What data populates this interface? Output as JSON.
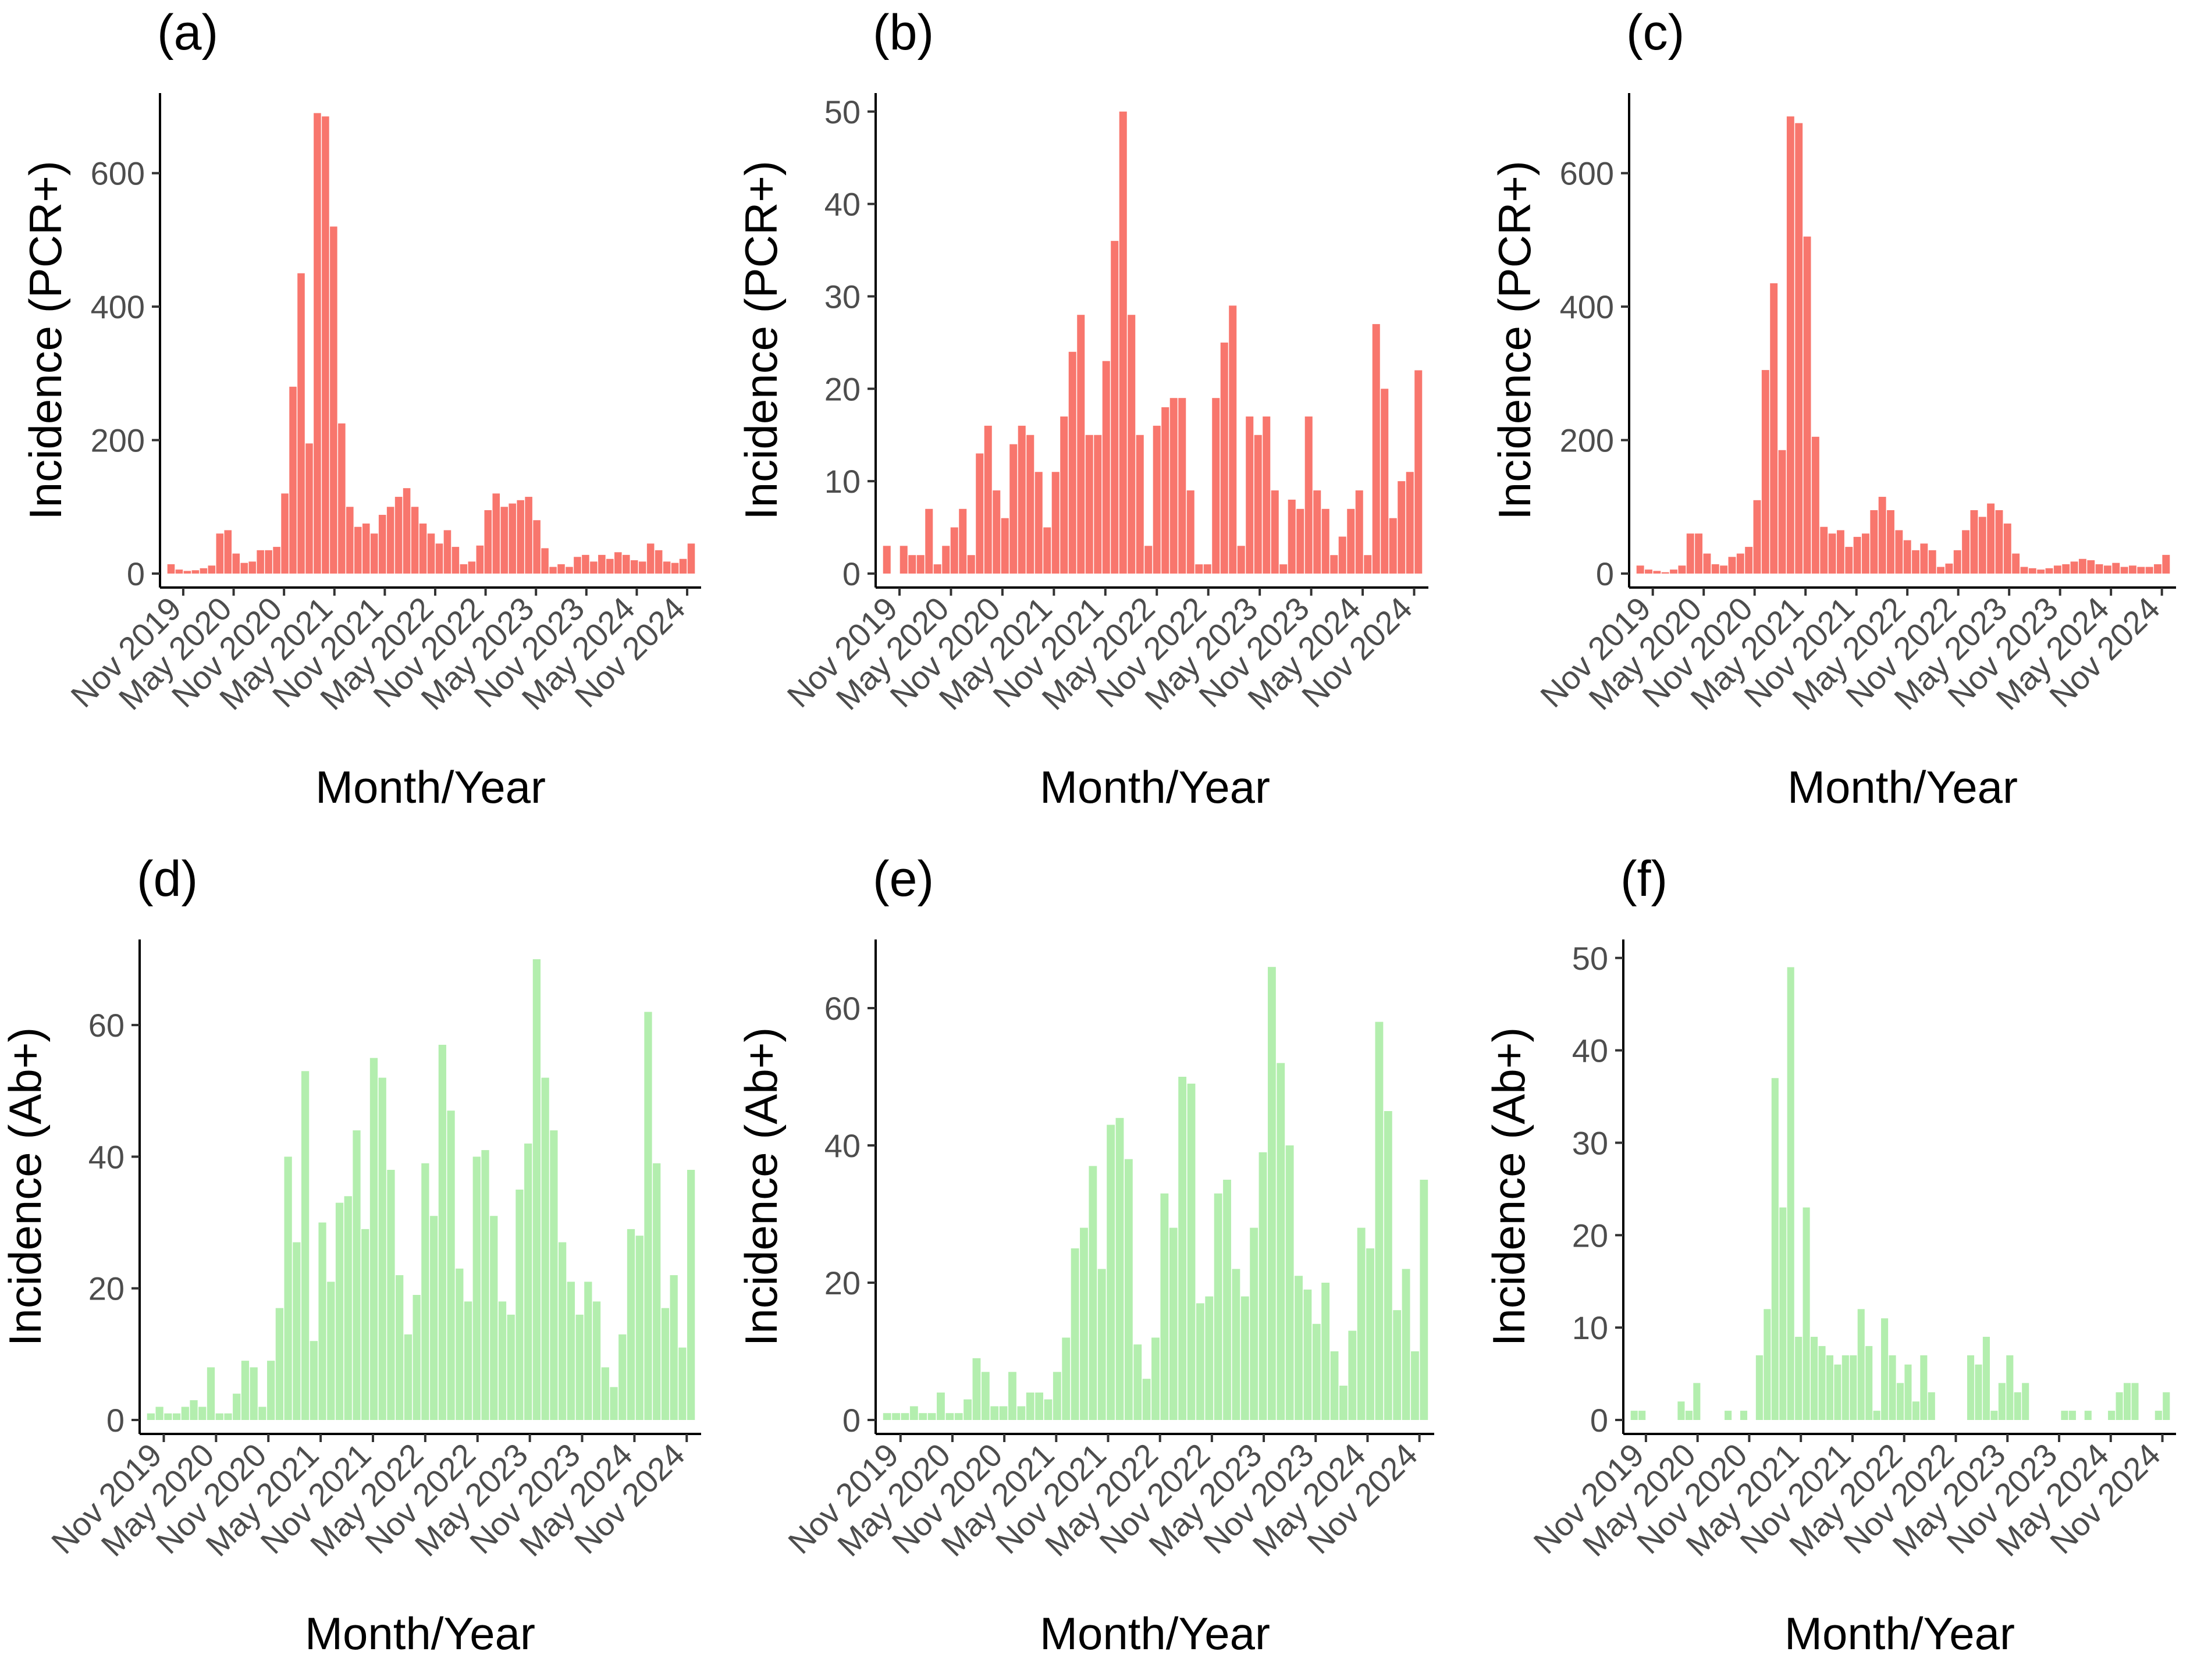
{
  "chart_data": [
    {
      "type": "bar",
      "panel": "(a)",
      "ylabel": "Incidence (PCR+)",
      "xlabel": "Month/Year",
      "color": "#f8766d",
      "ylim": [
        0,
        720
      ],
      "yticks": [
        0,
        200,
        400,
        600
      ],
      "xticks": [
        "Nov 2019",
        "May 2020",
        "Nov 2020",
        "May 2021",
        "Nov 2021",
        "May 2022",
        "Nov 2022",
        "May 2023",
        "Nov 2023",
        "May 2024",
        "Nov 2024"
      ],
      "values": [
        14,
        6,
        4,
        5,
        8,
        12,
        60,
        65,
        30,
        16,
        18,
        35,
        35,
        40,
        120,
        280,
        450,
        195,
        690,
        685,
        520,
        225,
        100,
        70,
        75,
        60,
        88,
        100,
        115,
        128,
        100,
        75,
        60,
        45,
        65,
        40,
        14,
        18,
        42,
        95,
        120,
        100,
        105,
        110,
        115,
        80,
        38,
        10,
        14,
        10,
        25,
        28,
        18,
        28,
        22,
        32,
        28,
        20,
        18,
        45,
        35,
        18,
        16,
        22,
        45
      ]
    },
    {
      "type": "bar",
      "panel": "(b)",
      "ylabel": "Incidence (PCR+)",
      "xlabel": "Month/Year",
      "color": "#f8766d",
      "ylim": [
        0,
        52
      ],
      "yticks": [
        0,
        10,
        20,
        30,
        40,
        50
      ],
      "xticks": [
        "Nov 2019",
        "May 2020",
        "Nov 2020",
        "May 2021",
        "Nov 2021",
        "May 2022",
        "Nov 2022",
        "May 2023",
        "Nov 2023",
        "May 2024",
        "Nov 2024"
      ],
      "values": [
        3,
        0,
        3,
        2,
        2,
        7,
        1,
        3,
        5,
        7,
        2,
        13,
        16,
        9,
        6,
        14,
        16,
        15,
        11,
        5,
        11,
        17,
        24,
        28,
        15,
        15,
        23,
        36,
        50,
        28,
        15,
        3,
        16,
        18,
        19,
        19,
        9,
        1,
        1,
        19,
        25,
        29,
        3,
        17,
        15,
        17,
        9,
        1,
        8,
        7,
        17,
        9,
        7,
        2,
        4,
        7,
        9,
        2,
        27,
        20,
        6,
        10,
        11,
        22
      ]
    },
    {
      "type": "bar",
      "panel": "(c)",
      "ylabel": "Incidence (PCR+)",
      "xlabel": "Month/Year",
      "color": "#f8766d",
      "ylim": [
        0,
        720
      ],
      "yticks": [
        0,
        200,
        400,
        600
      ],
      "xticks": [
        "Nov 2019",
        "May 2020",
        "Nov 2020",
        "May 2021",
        "Nov 2021",
        "May 2022",
        "Nov 2022",
        "May 2023",
        "Nov 2023",
        "May 2024",
        "Nov 2024"
      ],
      "values": [
        12,
        6,
        4,
        2,
        6,
        12,
        60,
        60,
        30,
        14,
        12,
        25,
        30,
        40,
        110,
        305,
        435,
        185,
        685,
        675,
        505,
        205,
        70,
        60,
        65,
        40,
        55,
        60,
        95,
        115,
        95,
        65,
        50,
        35,
        45,
        35,
        10,
        15,
        35,
        65,
        95,
        85,
        105,
        95,
        75,
        30,
        10,
        8,
        6,
        8,
        12,
        14,
        18,
        22,
        20,
        14,
        12,
        16,
        10,
        12,
        10,
        10,
        14,
        28
      ]
    },
    {
      "type": "bar",
      "panel": "(d)",
      "ylabel": "Incidence (Ab+)",
      "xlabel": "Month/Year",
      "color": "#b3eeae",
      "ylim": [
        0,
        73
      ],
      "yticks": [
        0,
        20,
        40,
        60
      ],
      "xticks": [
        "Nov 2019",
        "May 2020",
        "Nov 2020",
        "May 2021",
        "Nov 2021",
        "May 2022",
        "Nov 2022",
        "May 2023",
        "Nov 2023",
        "May 2024",
        "Nov 2024"
      ],
      "values": [
        1,
        2,
        1,
        1,
        2,
        3,
        2,
        8,
        1,
        1,
        4,
        9,
        8,
        2,
        9,
        17,
        40,
        27,
        53,
        12,
        30,
        21,
        33,
        34,
        44,
        29,
        55,
        52,
        38,
        22,
        13,
        19,
        39,
        31,
        57,
        47,
        23,
        18,
        40,
        41,
        31,
        18,
        16,
        35,
        42,
        70,
        52,
        44,
        27,
        21,
        16,
        21,
        18,
        8,
        5,
        13,
        29,
        28,
        62,
        39,
        17,
        22,
        11,
        38
      ]
    },
    {
      "type": "bar",
      "panel": "(e)",
      "ylabel": "Incidence (Ab+)",
      "xlabel": "Month/Year",
      "color": "#b3eeae",
      "ylim": [
        0,
        70
      ],
      "yticks": [
        0,
        20,
        40,
        60
      ],
      "xticks": [
        "Nov 2019",
        "May 2020",
        "Nov 2020",
        "May 2021",
        "Nov 2021",
        "May 2022",
        "Nov 2022",
        "May 2023",
        "Nov 2023",
        "May 2024",
        "Nov 2024"
      ],
      "values": [
        1,
        1,
        1,
        2,
        1,
        1,
        4,
        1,
        1,
        3,
        9,
        7,
        2,
        2,
        7,
        2,
        4,
        4,
        3,
        7,
        12,
        25,
        28,
        37,
        22,
        43,
        44,
        38,
        11,
        6,
        12,
        33,
        28,
        50,
        49,
        17,
        18,
        33,
        35,
        22,
        18,
        28,
        39,
        66,
        52,
        40,
        21,
        19,
        14,
        20,
        10,
        5,
        13,
        28,
        25,
        58,
        45,
        16,
        22,
        10,
        35
      ]
    },
    {
      "type": "bar",
      "panel": "(f)",
      "ylabel": "Incidence (Ab+)",
      "xlabel": "Month/Year",
      "color": "#b3eeae",
      "ylim": [
        0,
        52
      ],
      "yticks": [
        0,
        10,
        20,
        30,
        40,
        50
      ],
      "xticks": [
        "Nov 2019",
        "May 2020",
        "Nov 2020",
        "May 2021",
        "Nov 2021",
        "May 2022",
        "Nov 2022",
        "May 2023",
        "Nov 2023",
        "May 2024",
        "Nov 2024"
      ],
      "values": [
        1,
        1,
        0,
        0,
        0,
        0,
        2,
        1,
        4,
        0,
        0,
        0,
        1,
        0,
        1,
        0,
        7,
        12,
        37,
        23,
        49,
        9,
        23,
        9,
        8,
        7,
        6,
        7,
        7,
        12,
        8,
        1,
        11,
        7,
        4,
        6,
        2,
        7,
        3,
        0,
        0,
        0,
        0,
        7,
        6,
        9,
        1,
        4,
        7,
        3,
        4,
        0,
        0,
        0,
        0,
        1,
        1,
        0,
        1,
        0,
        0,
        1,
        3,
        4,
        4,
        0,
        0,
        1,
        3
      ]
    }
  ]
}
